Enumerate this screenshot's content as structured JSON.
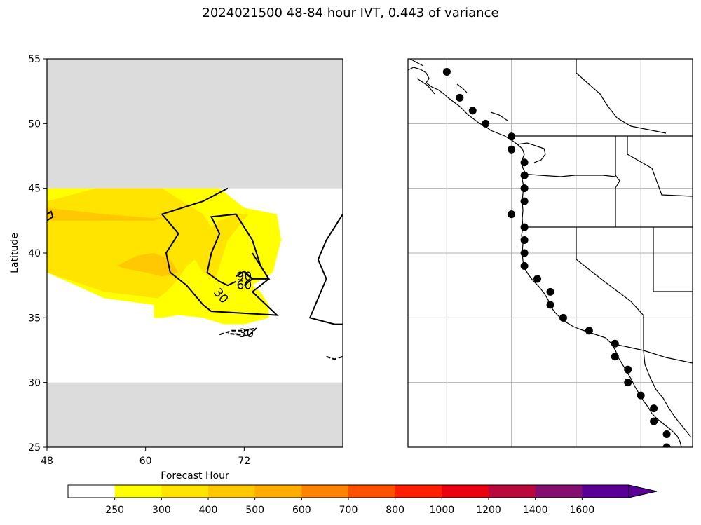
{
  "title": "2024021500 48-84 hour IVT, 0.443 of variance",
  "chart_data": [
    {
      "type": "contour",
      "panel": "left",
      "xlabel": "Forecast Hour",
      "ylabel": "Latitude",
      "xlim": [
        48,
        84
      ],
      "ylim": [
        25,
        55
      ],
      "xticks": [
        48,
        60,
        72
      ],
      "yticks": [
        25,
        30,
        35,
        40,
        45,
        50,
        55
      ],
      "masked_lat_ranges": [
        [
          45,
          55
        ],
        [
          25,
          30
        ]
      ],
      "mask_color": "#dcdcdc",
      "filled_regions": [
        {
          "level": "250-300",
          "color": "#ffff00",
          "points": [
            [
              48,
              45
            ],
            [
              60,
              45
            ],
            [
              62,
              45
            ],
            [
              69,
              45
            ],
            [
              72,
              43.5
            ],
            [
              76,
              43
            ],
            [
              76.5,
              41
            ],
            [
              75.5,
              38.5
            ],
            [
              73,
              37.5
            ],
            [
              74,
              37
            ],
            [
              75,
              36
            ],
            [
              75,
              35
            ],
            [
              72,
              34.5
            ],
            [
              69.5,
              34.5
            ],
            [
              67,
              35
            ],
            [
              64,
              35.2
            ],
            [
              62,
              35
            ],
            [
              61,
              35
            ],
            [
              61,
              36
            ],
            [
              55,
              36.5
            ],
            [
              48,
              38.5
            ]
          ]
        },
        {
          "level": "300-400",
          "color": "#ffe400",
          "points": [
            [
              48,
              44
            ],
            [
              54,
              45
            ],
            [
              60,
              45
            ],
            [
              62,
              45
            ],
            [
              64.5,
              44
            ],
            [
              67,
              43
            ],
            [
              68,
              42
            ],
            [
              69,
              42.5
            ],
            [
              71,
              43
            ],
            [
              72.5,
              43
            ],
            [
              70,
              41
            ],
            [
              69,
              39
            ],
            [
              68.5,
              38
            ],
            [
              67,
              38.5
            ],
            [
              66,
              39.5
            ],
            [
              65,
              39
            ],
            [
              64,
              38
            ],
            [
              62.5,
              37
            ],
            [
              61.5,
              36.5
            ],
            [
              55,
              37
            ],
            [
              48,
              38.5
            ]
          ]
        },
        {
          "level": "400-500",
          "color": "#ffc800",
          "points": [
            [
              48,
              43.5
            ],
            [
              55,
              43
            ],
            [
              61,
              42.7
            ],
            [
              63,
              43
            ],
            [
              61,
              42.5
            ],
            [
              48,
              42.5
            ]
          ]
        },
        {
          "level": "400-500",
          "color": "#ffc800",
          "points": [
            [
              56.5,
              39
            ],
            [
              59,
              39.8
            ],
            [
              61,
              40
            ],
            [
              63,
              39.5
            ],
            [
              64,
              38.5
            ],
            [
              62,
              38.2
            ],
            [
              60,
              38.5
            ],
            [
              57.5,
              38.8
            ]
          ]
        }
      ],
      "contours": [
        {
          "label": "30",
          "style": "solid",
          "points": [
            [
              70,
              45
            ],
            [
              67,
              44
            ],
            [
              62,
              43
            ],
            [
              64,
              41.5
            ],
            [
              62.5,
              40
            ],
            [
              63,
              38.5
            ],
            [
              65,
              37.5
            ],
            [
              67,
              36
            ],
            [
              68,
              35.5
            ],
            [
              76,
              35.2
            ],
            [
              73,
              37
            ],
            [
              75,
              38
            ],
            [
              73,
              40
            ]
          ]
        },
        {
          "label": "60",
          "style": "solid",
          "points": [
            [
              72,
              38.5
            ],
            [
              73,
              38
            ],
            [
              74,
              38
            ],
            [
              75,
              38
            ],
            [
              74,
              39
            ],
            [
              73,
              41
            ],
            [
              72,
              42
            ],
            [
              71,
              43
            ],
            [
              68,
              42.8
            ],
            [
              69,
              41.5
            ],
            [
              68,
              40
            ],
            [
              67.5,
              38.5
            ],
            [
              69,
              37.8
            ],
            [
              70,
              37.5
            ],
            [
              71,
              37.8
            ]
          ]
        },
        {
          "label": "90",
          "style": "solid",
          "points": [
            [
              71,
              38.2
            ],
            [
              72,
              38.6
            ],
            [
              73,
              38
            ],
            [
              72,
              37.5
            ]
          ]
        },
        {
          "label": "",
          "style": "solid",
          "points": [
            [
              84,
              43
            ],
            [
              82,
              41
            ],
            [
              81,
              39.5
            ],
            [
              82,
              38
            ],
            [
              81,
              36.5
            ],
            [
              80,
              35
            ],
            [
              83,
              34.5
            ],
            [
              84,
              34.5
            ]
          ]
        },
        {
          "label": "",
          "style": "solid",
          "points": [
            [
              48,
              43
            ],
            [
              48.5,
              43.2
            ],
            [
              48.7,
              42.8
            ],
            [
              48,
              42.5
            ]
          ]
        },
        {
          "label": "-30",
          "style": "dashed",
          "points": [
            [
              69,
              33.7
            ],
            [
              70.5,
              34
            ],
            [
              72,
              34
            ],
            [
              73.5,
              34.2
            ],
            [
              72.5,
              33.6
            ],
            [
              70,
              33.8
            ]
          ]
        },
        {
          "label": "",
          "style": "dashed",
          "points": [
            [
              82,
              32
            ],
            [
              83,
              31.8
            ],
            [
              84,
              32
            ]
          ]
        }
      ],
      "contour_label_positions": [
        {
          "label": "30",
          "x": 68.8,
          "y": 36.5,
          "rotate": 50
        },
        {
          "label": "60",
          "x": 72,
          "y": 37.2,
          "rotate": 0
        },
        {
          "label": "90",
          "x": 72,
          "y": 37.9,
          "rotate": 0
        },
        {
          "label": "-30",
          "x": 72,
          "y": 33.5,
          "rotate": 0
        }
      ]
    },
    {
      "type": "map",
      "panel": "right",
      "region": "US West Coast",
      "lon_range": [
        -132,
        -110
      ],
      "lat_range": [
        25,
        55
      ],
      "grid_lons": [
        -129,
        -124,
        -119,
        -114
      ],
      "grid_lats": [
        30,
        35,
        40,
        45,
        50
      ],
      "points": [
        [
          -129.0,
          54.0
        ],
        [
          -128.0,
          52.0
        ],
        [
          -127.0,
          51.0
        ],
        [
          -126.0,
          50.0
        ],
        [
          -124.0,
          49.0
        ],
        [
          -124.0,
          48.0
        ],
        [
          -123.0,
          47.0
        ],
        [
          -123.0,
          46.0
        ],
        [
          -123.0,
          45.0
        ],
        [
          -123.0,
          44.0
        ],
        [
          -124.0,
          43.0
        ],
        [
          -123.0,
          42.0
        ],
        [
          -123.0,
          41.0
        ],
        [
          -123.0,
          40.0
        ],
        [
          -123.0,
          39.0
        ],
        [
          -122.0,
          38.0
        ],
        [
          -121.0,
          37.0
        ],
        [
          -121.0,
          36.0
        ],
        [
          -120.0,
          35.0
        ],
        [
          -118.0,
          34.0
        ],
        [
          -116.0,
          33.0
        ],
        [
          -116.0,
          32.0
        ],
        [
          -115.0,
          31.0
        ],
        [
          -115.0,
          30.0
        ],
        [
          -114.0,
          29.0
        ],
        [
          -113.0,
          28.0
        ],
        [
          -113.0,
          27.0
        ],
        [
          -112.0,
          26.0
        ],
        [
          -112.0,
          25.0
        ]
      ]
    }
  ],
  "colorbar": {
    "ticks": [
      "250",
      "300",
      "400",
      "500",
      "600",
      "700",
      "800",
      "1000",
      "1200",
      "1400",
      "1600"
    ],
    "colors": [
      "#ffffff",
      "#ffff00",
      "#ffe400",
      "#ffc800",
      "#ffad00",
      "#ff8200",
      "#ff5000",
      "#ff1e00",
      "#eb0010",
      "#b8083c",
      "#850f6e",
      "#5a0096"
    ]
  }
}
